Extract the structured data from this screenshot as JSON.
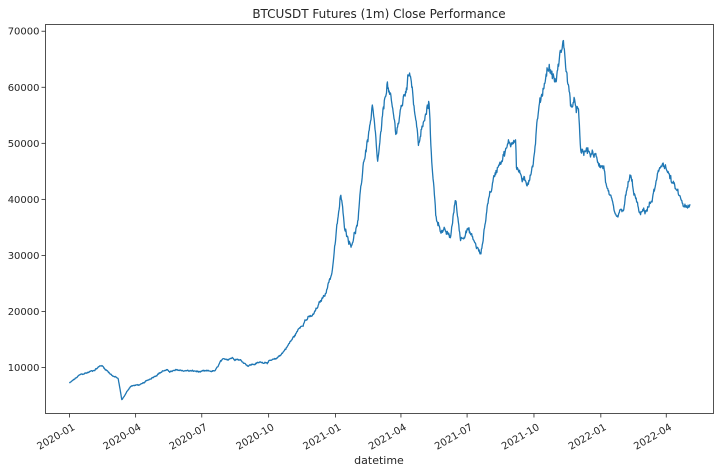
{
  "chart_data": {
    "type": "line",
    "title": "BTCUSDT Futures (1m) Close Performance",
    "xlabel": "datetime",
    "ylabel": "",
    "grid": false,
    "legend": "none",
    "ylim": [
      1800,
      71200
    ],
    "xlim": [
      "2019-11-29",
      "2022-06-05"
    ],
    "y_ticks": [
      10000,
      20000,
      30000,
      40000,
      50000,
      60000,
      70000
    ],
    "x_ticks": [
      "2020-01",
      "2020-04",
      "2020-07",
      "2020-10",
      "2021-01",
      "2021-04",
      "2021-07",
      "2021-10",
      "2022-01",
      "2022-04"
    ],
    "series": [
      {
        "color": "#1f77b4",
        "x": [
          "2020-01-01",
          "2020-01-15",
          "2020-02-01",
          "2020-02-14",
          "2020-03-01",
          "2020-03-08",
          "2020-03-12",
          "2020-03-13",
          "2020-03-25",
          "2020-04-10",
          "2020-04-30",
          "2020-05-10",
          "2020-05-20",
          "2020-06-01",
          "2020-06-15",
          "2020-07-01",
          "2020-07-20",
          "2020-07-27",
          "2020-08-10",
          "2020-08-20",
          "2020-09-03",
          "2020-09-20",
          "2020-10-10",
          "2020-10-21",
          "2020-11-05",
          "2020-11-20",
          "2020-12-01",
          "2020-12-17",
          "2020-12-27",
          "2021-01-08",
          "2021-01-14",
          "2021-01-22",
          "2021-02-01",
          "2021-02-08",
          "2021-02-21",
          "2021-02-28",
          "2021-03-13",
          "2021-03-25",
          "2021-04-05",
          "2021-04-14",
          "2021-04-25",
          "2021-05-10",
          "2021-05-12",
          "2021-05-19",
          "2021-05-25",
          "2021-06-08",
          "2021-06-15",
          "2021-06-22",
          "2021-07-01",
          "2021-07-20",
          "2021-07-30",
          "2021-08-14",
          "2021-08-23",
          "2021-09-06",
          "2021-09-07",
          "2021-09-21",
          "2021-10-01",
          "2021-10-06",
          "2021-10-20",
          "2021-10-31",
          "2021-11-10",
          "2021-11-20",
          "2021-12-01",
          "2021-12-04",
          "2021-12-15",
          "2021-12-28",
          "2022-01-05",
          "2022-01-10",
          "2022-01-22",
          "2022-02-01",
          "2022-02-10",
          "2022-02-24",
          "2022-03-10",
          "2022-03-28",
          "2022-04-10",
          "2022-04-20",
          "2022-04-30",
          "2022-05-04"
        ],
        "y": [
          7200,
          8600,
          9400,
          10400,
          8500,
          8000,
          5000,
          4200,
          6700,
          7000,
          8800,
          9500,
          9300,
          9500,
          9400,
          9200,
          9400,
          11000,
          11800,
          11600,
          10400,
          10900,
          11300,
          12800,
          15500,
          18600,
          19200,
          23000,
          27000,
          40500,
          35000,
          32000,
          36000,
          46000,
          56000,
          46000,
          61000,
          52000,
          58000,
          63500,
          50000,
          57000,
          50000,
          37000,
          35000,
          33000,
          40000,
          33000,
          35000,
          30000,
          40000,
          47000,
          49000,
          51000,
          46000,
          42000,
          48000,
          55000,
          64000,
          61000,
          68500,
          57000,
          56000,
          48000,
          48500,
          47000,
          46000,
          41500,
          36000,
          38000,
          44000,
          37000,
          39000,
          47000,
          42500,
          40000,
          38000,
          38500
        ]
      }
    ]
  }
}
